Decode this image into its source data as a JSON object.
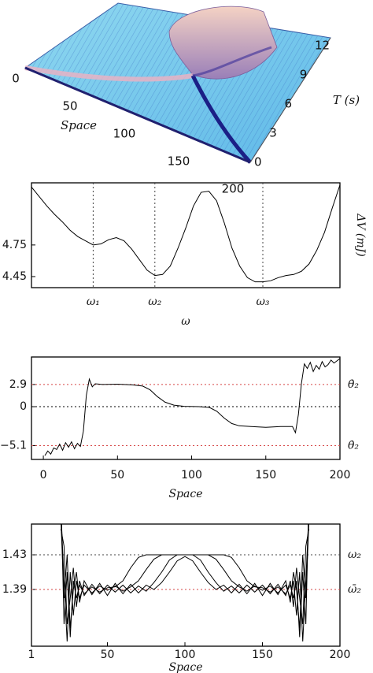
{
  "chart_data": [
    {
      "type": "surface3d",
      "xlabel": "Space",
      "ylabel": "T (s)",
      "xlim": [
        0,
        200
      ],
      "xticks": [
        0,
        50,
        100,
        150,
        200
      ],
      "ylim": [
        0,
        12
      ],
      "yticks": [
        0,
        3,
        6,
        9,
        12
      ]
    },
    {
      "type": "line",
      "xlabel": "ω",
      "ylabel": "ΔV (mJ)",
      "categories": [
        null,
        null,
        null,
        null,
        null,
        null,
        null,
        null,
        "ω₁",
        null,
        null,
        null,
        null,
        null,
        null,
        null,
        "ω₂",
        null,
        null,
        null,
        null,
        null,
        null,
        null,
        null,
        null,
        null,
        null,
        null,
        null,
        "ω₃",
        null,
        null,
        null,
        null,
        null,
        null,
        null,
        null,
        null,
        null
      ],
      "values": [
        5.3,
        5.21,
        5.12,
        5.04,
        4.97,
        4.89,
        4.83,
        4.79,
        4.75,
        4.76,
        4.8,
        4.82,
        4.79,
        4.71,
        4.61,
        4.51,
        4.46,
        4.47,
        4.55,
        4.72,
        4.91,
        5.12,
        5.25,
        5.26,
        5.17,
        4.96,
        4.72,
        4.55,
        4.44,
        4.4,
        4.4,
        4.41,
        4.44,
        4.46,
        4.47,
        4.5,
        4.57,
        4.7,
        4.87,
        5.1,
        5.32
      ],
      "color": "#000000",
      "ylim": [
        4.345,
        5.34
      ],
      "yticks": [
        4.45,
        4.75
      ]
    },
    {
      "type": "line",
      "xlabel": "Space",
      "x": [
        1,
        3,
        5,
        7,
        9,
        11,
        13,
        15,
        17,
        19,
        21,
        23,
        25,
        27,
        29,
        31,
        33,
        35,
        40,
        50,
        60,
        67,
        72,
        77,
        82,
        88,
        95,
        105,
        112,
        117,
        122,
        127,
        132,
        140,
        150,
        160,
        168,
        170,
        172,
        174,
        176,
        178,
        180,
        182,
        184,
        186,
        188,
        190,
        192,
        194,
        196,
        198,
        200
      ],
      "series": [
        {
          "color": "#000000",
          "values": [
            -6.4,
            -5.8,
            -6.2,
            -5.4,
            -5.6,
            -4.9,
            -5.7,
            -4.7,
            -5.3,
            -4.6,
            -5.5,
            -4.8,
            -5.2,
            -3.2,
            1.5,
            3.6,
            2.6,
            3.0,
            2.9,
            2.95,
            2.85,
            2.7,
            2.2,
            1.3,
            0.6,
            0.2,
            0.05,
            0,
            -0.1,
            -0.6,
            -1.5,
            -2.2,
            -2.5,
            -2.6,
            -2.7,
            -2.6,
            -2.6,
            -3.4,
            -1.0,
            3.0,
            5.6,
            5.0,
            5.8,
            4.6,
            5.4,
            4.9,
            5.9,
            5.2,
            5.5,
            6.1,
            5.7,
            6.0,
            6.3
          ]
        }
      ],
      "xlim": [
        -8,
        200
      ],
      "xticks": [
        0,
        50,
        100,
        150,
        200
      ],
      "ylim": [
        -6.9,
        6.5
      ],
      "yticks": [
        {
          "value": -5.1,
          "label": "−5.1"
        },
        0,
        2.9
      ],
      "hlines": [
        {
          "value": 2.9,
          "color": "#d64545",
          "label": "θ̇₂"
        },
        {
          "value": 0,
          "color": "#000000"
        },
        {
          "value": -5.1,
          "color": "#d64545",
          "label": "θ̇₂"
        }
      ]
    },
    {
      "type": "line",
      "xlabel": "Space",
      "x": [
        20,
        22,
        24,
        26,
        28,
        30,
        32,
        35,
        40,
        45,
        50,
        55,
        60,
        65,
        70,
        75,
        80,
        85,
        90,
        95,
        100,
        105,
        110,
        115,
        120,
        125,
        130,
        135,
        140,
        145,
        150,
        155,
        160,
        165,
        168,
        170,
        172,
        174,
        176,
        178,
        180
      ],
      "series": [
        {
          "color": "#000000",
          "values": [
            1.5,
            1.35,
            1.41,
            1.335,
            1.4,
            1.38,
            1.395,
            1.385,
            1.393,
            1.387,
            1.392,
            1.393,
            1.4,
            1.415,
            1.427,
            1.43,
            1.43,
            1.43,
            1.43,
            1.43,
            1.43,
            1.43,
            1.43,
            1.43,
            1.43,
            1.43,
            1.427,
            1.415,
            1.4,
            1.393,
            1.392,
            1.387,
            1.393,
            1.385,
            1.395,
            1.38,
            1.4,
            1.335,
            1.41,
            1.35,
            1.5
          ]
        },
        {
          "color": "#000000",
          "values": [
            1.48,
            1.4,
            1.33,
            1.41,
            1.36,
            1.4,
            1.38,
            1.395,
            1.386,
            1.394,
            1.389,
            1.394,
            1.388,
            1.393,
            1.4,
            1.413,
            1.425,
            1.43,
            1.43,
            1.43,
            1.43,
            1.43,
            1.43,
            1.43,
            1.425,
            1.413,
            1.4,
            1.393,
            1.388,
            1.394,
            1.389,
            1.394,
            1.386,
            1.395,
            1.38,
            1.4,
            1.36,
            1.41,
            1.33,
            1.4,
            1.48
          ]
        },
        {
          "color": "#000000",
          "values": [
            1.46,
            1.44,
            1.35,
            1.38,
            1.415,
            1.37,
            1.4,
            1.383,
            1.396,
            1.385,
            1.395,
            1.387,
            1.395,
            1.386,
            1.394,
            1.388,
            1.398,
            1.41,
            1.424,
            1.43,
            1.43,
            1.43,
            1.424,
            1.41,
            1.398,
            1.388,
            1.394,
            1.386,
            1.395,
            1.387,
            1.395,
            1.385,
            1.396,
            1.383,
            1.4,
            1.37,
            1.415,
            1.38,
            1.35,
            1.44,
            1.46
          ]
        },
        {
          "color": "#000000",
          "values": [
            1.47,
            1.38,
            1.43,
            1.345,
            1.39,
            1.41,
            1.375,
            1.4,
            1.384,
            1.397,
            1.383,
            1.397,
            1.385,
            1.396,
            1.386,
            1.395,
            1.39,
            1.398,
            1.41,
            1.423,
            1.428,
            1.423,
            1.41,
            1.398,
            1.39,
            1.395,
            1.386,
            1.396,
            1.385,
            1.397,
            1.383,
            1.397,
            1.384,
            1.4,
            1.375,
            1.41,
            1.39,
            1.345,
            1.43,
            1.38,
            1.47
          ]
        }
      ],
      "xlim": [
        1,
        200
      ],
      "xticks": [
        1,
        50,
        100,
        150,
        200
      ],
      "ylim": [
        1.3245,
        1.4655
      ],
      "yticks": [
        1.39,
        1.43
      ],
      "hlines": [
        {
          "value": 1.43,
          "color": "#444444",
          "label": "ω₂"
        },
        {
          "value": 1.39,
          "color": "#d64545",
          "label": "ω̄₂"
        }
      ]
    }
  ]
}
